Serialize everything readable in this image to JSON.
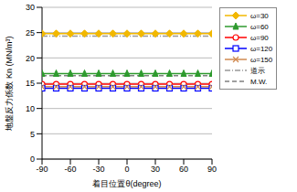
{
  "chart_data": {
    "type": "line",
    "x_label": "着目位置θ(degree)",
    "y_label": "地盤反力係数 Kn (MN/m³)",
    "x": [
      -90,
      -75,
      -60,
      -45,
      -30,
      -15,
      0,
      15,
      30,
      45,
      60,
      75,
      90
    ],
    "xlim": [
      -90,
      90
    ],
    "xticks": [
      -90,
      -60,
      -30,
      0,
      30,
      60,
      90
    ],
    "ylim": [
      0,
      30
    ],
    "yticks": [
      0,
      5,
      10,
      15,
      20,
      25,
      30
    ],
    "grid": true,
    "legend": "right",
    "series": [
      {
        "name": "ω=30",
        "color": "#f2b800",
        "marker": "diamond",
        "line_style": "solid",
        "values": [
          24.8,
          24.8,
          24.8,
          24.8,
          24.8,
          24.8,
          24.8,
          24.8,
          24.8,
          24.8,
          24.8,
          24.8,
          24.8
        ]
      },
      {
        "name": "ω=60",
        "color": "#2e9a2e",
        "marker": "triangle",
        "line_style": "solid",
        "values": [
          16.9,
          16.9,
          16.9,
          16.9,
          16.9,
          16.9,
          16.9,
          16.9,
          16.9,
          16.9,
          16.9,
          16.9,
          16.9
        ]
      },
      {
        "name": "ω=90",
        "color": "#ff0000",
        "marker": "circle",
        "line_style": "solid",
        "values": [
          14.8,
          14.8,
          14.8,
          14.8,
          14.8,
          14.8,
          14.8,
          14.8,
          14.8,
          14.8,
          14.8,
          14.8,
          14.8
        ]
      },
      {
        "name": "ω=120",
        "color": "#0000ff",
        "marker": "square",
        "line_style": "solid",
        "values": [
          14.0,
          14.0,
          14.0,
          14.0,
          14.0,
          14.0,
          14.0,
          14.0,
          14.0,
          14.0,
          14.0,
          14.0,
          14.0
        ]
      },
      {
        "name": "ω=150",
        "color": "#d08a50",
        "marker": "x",
        "line_style": "solid",
        "values": [
          14.3,
          14.3,
          14.3,
          14.3,
          14.3,
          14.3,
          14.3,
          14.3,
          14.3,
          14.3,
          14.3,
          14.3,
          14.3
        ]
      },
      {
        "name": "道示",
        "color": "#999999",
        "marker": "none",
        "line_style": "dashdot",
        "values": [
          24.3,
          24.3,
          24.3,
          24.3,
          24.3,
          24.3,
          24.3,
          24.3,
          24.3,
          24.3,
          24.3,
          24.3,
          24.3
        ]
      },
      {
        "name": "M.W.",
        "color": "#808080",
        "marker": "none",
        "line_style": "dashed",
        "values": [
          16.5,
          16.5,
          16.5,
          16.5,
          16.5,
          16.5,
          16.5,
          16.5,
          16.5,
          16.5,
          16.5,
          16.5,
          16.5
        ]
      }
    ]
  }
}
